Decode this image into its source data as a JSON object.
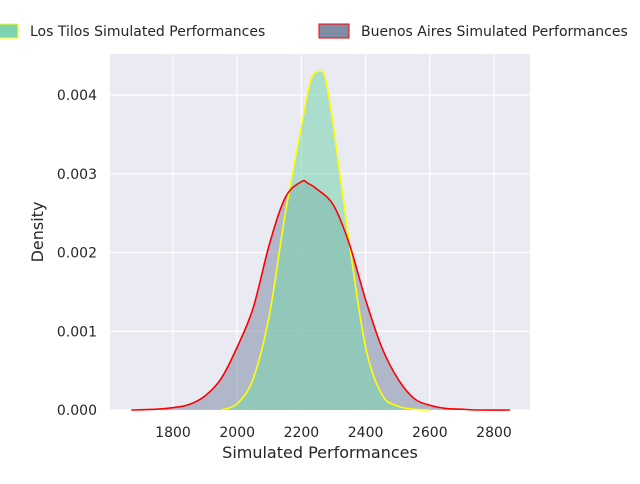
{
  "chart_data": {
    "type": "area",
    "title": "",
    "xlabel": "Simulated Performances",
    "ylabel": "Density",
    "xlim": [
      1650,
      2900
    ],
    "ylim": [
      0,
      0.0045
    ],
    "x_ticks": [
      1800,
      2000,
      2200,
      2400,
      2600,
      2800
    ],
    "x_tick_labels": [
      "1800",
      "2000",
      "2200",
      "2400",
      "2600",
      "2800"
    ],
    "y_ticks": [
      0.0,
      0.001,
      0.002,
      0.003,
      0.004
    ],
    "y_tick_labels": [
      "0.000",
      "0.001",
      "0.002",
      "0.003",
      "0.004"
    ],
    "grid": true,
    "legend_position": "top, above plot",
    "series": [
      {
        "name": "Los Tilos Simulated Performances",
        "fill_color": "#7fd3b0",
        "line_color": "#ffff00",
        "x": [
          1950,
          2000,
          2050,
          2100,
          2150,
          2200,
          2230,
          2260,
          2275,
          2300,
          2350,
          2400,
          2450,
          2500,
          2550,
          2600
        ],
        "y": [
          0.0,
          8e-05,
          0.0004,
          0.0012,
          0.0025,
          0.0036,
          0.0042,
          0.0043,
          0.0042,
          0.0036,
          0.0021,
          0.0008,
          0.0002,
          5e-05,
          1e-05,
          0.0
        ]
      },
      {
        "name": "Buenos Aires Simulated Performances",
        "fill_color": "#7f8ca6",
        "line_color": "#ff0000",
        "x": [
          1670,
          1750,
          1800,
          1850,
          1900,
          1950,
          2000,
          2050,
          2100,
          2150,
          2200,
          2220,
          2250,
          2300,
          2350,
          2400,
          2450,
          2500,
          2550,
          2600,
          2650,
          2700,
          2750,
          2850
        ],
        "y": [
          0.0,
          1e-05,
          3e-05,
          7e-05,
          0.00018,
          0.0004,
          0.0008,
          0.0013,
          0.0021,
          0.0027,
          0.0029,
          0.00288,
          0.0028,
          0.0026,
          0.0021,
          0.0014,
          0.0008,
          0.0004,
          0.00015,
          6e-05,
          2e-05,
          1e-05,
          0.0,
          0.0
        ]
      }
    ]
  }
}
